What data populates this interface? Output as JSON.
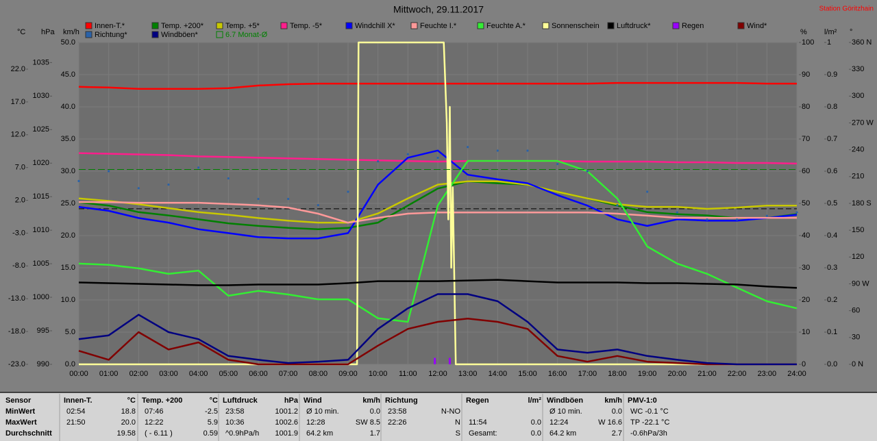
{
  "chart_data": {
    "type": "line",
    "title": "Mittwoch, 29.11.2017",
    "station": "Station Göritzhain",
    "xlim": [
      0,
      24
    ],
    "xticks": [
      {
        "value": 0,
        "label": "00:00"
      },
      {
        "value": 1,
        "label": "01:00"
      },
      {
        "value": 2,
        "label": "02:00"
      },
      {
        "value": 3,
        "label": "03:00"
      },
      {
        "value": 4,
        "label": "04:00"
      },
      {
        "value": 5,
        "label": "05:00"
      },
      {
        "value": 6,
        "label": "06:00"
      },
      {
        "value": 7,
        "label": "07:00"
      },
      {
        "value": 8,
        "label": "08:00"
      },
      {
        "value": 9,
        "label": "09:00"
      },
      {
        "value": 10,
        "label": "10:00"
      },
      {
        "value": 11,
        "label": "11:00"
      },
      {
        "value": 12,
        "label": "12:00"
      },
      {
        "value": 13,
        "label": "13:00"
      },
      {
        "value": 14,
        "label": "14:00"
      },
      {
        "value": 15,
        "label": "15:00"
      },
      {
        "value": 16,
        "label": "16:00"
      },
      {
        "value": 17,
        "label": "17:00"
      },
      {
        "value": 18,
        "label": "18:00"
      },
      {
        "value": 19,
        "label": "19:00"
      },
      {
        "value": 20,
        "label": "20:00"
      },
      {
        "value": 21,
        "label": "21:00"
      },
      {
        "value": 22,
        "label": "22:00"
      },
      {
        "value": 23,
        "label": "23:00"
      },
      {
        "value": 24,
        "label": "24:00"
      }
    ],
    "grid": true,
    "axes": {
      "c": {
        "unit": "°C",
        "lim": [
          -23,
          26.07
        ],
        "ticks": [
          {
            "value": -23,
            "label": "-23.0"
          },
          {
            "value": -18,
            "label": "-18.0"
          },
          {
            "value": -13,
            "label": "-13.0"
          },
          {
            "value": -8,
            "label": "-8.0"
          },
          {
            "value": -3,
            "label": "-3.0"
          },
          {
            "value": 2,
            "label": "2.0"
          },
          {
            "value": 7,
            "label": "7.0"
          },
          {
            "value": 12,
            "label": "12.0"
          },
          {
            "value": 17,
            "label": "17.0"
          },
          {
            "value": 22,
            "label": "22.0"
          }
        ]
      },
      "hpa": {
        "unit": "hPa",
        "lim": [
          990,
          1038
        ],
        "ticks": [
          990,
          995,
          1000,
          1005,
          1010,
          1015,
          1020,
          1025,
          1030,
          1035
        ]
      },
      "kmh": {
        "unit": "km/h",
        "lim": [
          0,
          50
        ],
        "ticks": [
          {
            "value": 0,
            "label": "0.0"
          },
          {
            "value": 5,
            "label": "5.0"
          },
          {
            "value": 10,
            "label": "10.0"
          },
          {
            "value": 15,
            "label": "15.0"
          },
          {
            "value": 20,
            "label": "20.0"
          },
          {
            "value": 25,
            "label": "25.0"
          },
          {
            "value": 30,
            "label": "30.0"
          },
          {
            "value": 35,
            "label": "35.0"
          },
          {
            "value": 40,
            "label": "40.0"
          },
          {
            "value": 45,
            "label": "45.0"
          },
          {
            "value": 50,
            "label": "50.0"
          }
        ]
      },
      "pct": {
        "unit": "%",
        "lim": [
          0,
          100
        ],
        "ticks": [
          0,
          10,
          20,
          30,
          40,
          50,
          60,
          70,
          80,
          90,
          100
        ]
      },
      "rain": {
        "unit": "l/m²",
        "lim": [
          0,
          1
        ],
        "ticks": [
          {
            "value": 0,
            "label": "0.0"
          },
          {
            "value": 0.1,
            "label": "0.1"
          },
          {
            "value": 0.2,
            "label": "0.2"
          },
          {
            "value": 0.3,
            "label": "0.3"
          },
          {
            "value": 0.4,
            "label": "0.4"
          },
          {
            "value": 0.5,
            "label": "0.5"
          },
          {
            "value": 0.6,
            "label": "0.6"
          },
          {
            "value": 0.7,
            "label": "0.7"
          },
          {
            "value": 0.8,
            "label": "0.8"
          },
          {
            "value": 0.9,
            "label": "0.9"
          },
          1
        ]
      },
      "deg": {
        "unit": "°",
        "lim": [
          0,
          360
        ],
        "ticks": [
          {
            "value": 0,
            "label": "0 N"
          },
          30,
          60,
          {
            "value": 90,
            "label": "90 W"
          },
          120,
          150,
          {
            "value": 180,
            "label": "180 S"
          },
          210,
          240,
          {
            "value": 270,
            "label": "270 W"
          },
          300,
          330,
          {
            "value": 360,
            "label": "360 N"
          }
        ]
      }
    },
    "x": [
      0,
      1,
      2,
      3,
      4,
      5,
      6,
      7,
      8,
      9,
      10,
      11,
      12,
      13,
      14,
      15,
      16,
      17,
      18,
      19,
      20,
      21,
      22,
      23,
      24
    ],
    "series": [
      {
        "name": "Innen-T.*",
        "color": "#ff0000",
        "axis": "c",
        "values": [
          19.3,
          19.2,
          19.0,
          19.0,
          19.0,
          19.1,
          19.5,
          19.7,
          19.8,
          19.8,
          19.8,
          19.8,
          19.8,
          19.8,
          19.8,
          19.8,
          19.8,
          19.8,
          19.9,
          19.9,
          19.9,
          19.9,
          19.9,
          19.8,
          19.8
        ]
      },
      {
        "name": "Temp. +200*",
        "color": "#008000",
        "axis": "c",
        "values": [
          1.7,
          1.2,
          0.2,
          -0.3,
          -0.9,
          -1.5,
          -1.9,
          -2.2,
          -2.4,
          -2.2,
          -1.4,
          1.2,
          3.8,
          4.9,
          4.6,
          4.4,
          3.3,
          2.3,
          1.2,
          0.2,
          -0.1,
          -0.3,
          -0.7,
          -0.7,
          -0.1
        ]
      },
      {
        "name": "Temp. +5*",
        "color": "#c8c800",
        "axis": "c",
        "values": [
          2.3,
          1.9,
          1.4,
          0.8,
          0.2,
          -0.2,
          -0.7,
          -1.1,
          -1.4,
          -1.4,
          0.0,
          2.3,
          4.4,
          4.9,
          4.9,
          4.4,
          3.3,
          2.3,
          1.4,
          1.0,
          1.0,
          0.7,
          0.9,
          1.2,
          1.2
        ]
      },
      {
        "name": "Temp. -5*",
        "color": "#ff1e8c",
        "axis": "c",
        "values": [
          9.2,
          9.1,
          9.0,
          8.9,
          8.7,
          8.6,
          8.5,
          8.4,
          8.3,
          8.2,
          8.1,
          8.0,
          7.9,
          8.0,
          8.0,
          8.0,
          8.0,
          7.9,
          7.9,
          7.9,
          7.8,
          7.8,
          7.7,
          7.7,
          7.6
        ]
      },
      {
        "name": "Windchill X*",
        "color": "#0000ff",
        "axis": "c",
        "values": [
          1.0,
          0.4,
          -0.7,
          -1.4,
          -2.4,
          -3.0,
          -3.6,
          -3.8,
          -3.8,
          -3.0,
          4.4,
          8.5,
          9.6,
          5.9,
          5.2,
          4.6,
          2.8,
          1.2,
          -0.9,
          -1.9,
          -0.9,
          -1.1,
          -1.1,
          -0.7,
          -0.2
        ]
      },
      {
        "name": "Feuchte I.*",
        "color": "#ff9999",
        "axis": "pct",
        "values": [
          50.4,
          50.4,
          50.2,
          50.2,
          50.2,
          49.8,
          49.4,
          48.7,
          46.8,
          44.0,
          45.5,
          46.8,
          47.2,
          47.2,
          47.2,
          47.2,
          47.2,
          47.2,
          46.8,
          46.2,
          45.5,
          45.5,
          45.5,
          45.5,
          45.5
        ]
      },
      {
        "name": "Feuchte A.*",
        "color": "#33ee33",
        "axis": "pct",
        "values": [
          31.3,
          30.9,
          29.8,
          28.1,
          29.1,
          21.3,
          22.8,
          21.7,
          20.2,
          20.2,
          14.3,
          13.2,
          49.4,
          63.2,
          63.2,
          63.2,
          63.2,
          60.0,
          51.5,
          36.6,
          31.3,
          28.1,
          23.8,
          19.6,
          17.4
        ]
      },
      {
        "name": "Sonnenschein",
        "color": "#ffff99",
        "axis": "pct",
        "x": [
          0,
          9.3,
          9.35,
          12.2,
          12.3,
          12.35,
          12.4,
          12.45,
          12.5,
          12.6,
          24
        ],
        "values": [
          0,
          0,
          100,
          100,
          75,
          45,
          80,
          30,
          55,
          0,
          0
        ]
      },
      {
        "name": "Luftdruck*",
        "color": "#000000",
        "axis": "hpa",
        "values": [
          1002.2,
          1002.1,
          1002.0,
          1001.9,
          1001.8,
          1001.8,
          1001.9,
          1001.9,
          1001.9,
          1002.1,
          1002.4,
          1002.4,
          1002.4,
          1002.5,
          1002.6,
          1002.4,
          1002.2,
          1002.2,
          1002.2,
          1002.1,
          1002.1,
          1002.0,
          1001.9,
          1001.6,
          1001.4
        ]
      },
      {
        "name": "Regen",
        "color": "#9900ff",
        "axis": "rain",
        "kind": "bars",
        "x": [
          11.9,
          12.4
        ],
        "values": [
          0.02,
          0.02
        ]
      },
      {
        "name": "Wind*",
        "color": "#800000",
        "axis": "kmh",
        "values": [
          2.1,
          0.7,
          5.0,
          2.3,
          3.4,
          0.7,
          0,
          0,
          0,
          0,
          2.9,
          5.5,
          6.6,
          7.1,
          6.6,
          5.5,
          1.3,
          0.4,
          1.3,
          0.4,
          0.2,
          0,
          0,
          0,
          0
        ]
      },
      {
        "name": "Richtung*",
        "color": "#2a62a8",
        "axis": "deg",
        "kind": "dots",
        "values": [
          205,
          216,
          197,
          201,
          220,
          208,
          185,
          185,
          178,
          193,
          227,
          235,
          231,
          243,
          239,
          239,
          224,
          216,
          178,
          193,
          170,
          162,
          162,
          166,
          170
        ]
      },
      {
        "name": "Windböen*",
        "color": "#000080",
        "axis": "kmh",
        "values": [
          3.9,
          4.5,
          7.7,
          5.0,
          3.9,
          1.3,
          0.7,
          0.2,
          0.4,
          0.7,
          5.5,
          8.7,
          10.9,
          10.9,
          9.8,
          6.6,
          2.3,
          1.8,
          2.3,
          1.3,
          0.7,
          0.2,
          0,
          0,
          0
        ]
      },
      {
        "name": "6.7 Monat-Ø",
        "color": "#008000",
        "axis": "c",
        "kind": "hline",
        "value": 6.7
      }
    ],
    "reference_lines": [
      {
        "value": 1013.2,
        "axis": "hpa",
        "color": "#000000"
      }
    ]
  },
  "table": {
    "row_labels": [
      "Sensor",
      "MinWert",
      "MaxWert",
      "Durchschnitt"
    ],
    "blocks": [
      {
        "header": [
          "Innen-T.",
          "°C"
        ],
        "rows": [
          [
            "02:54",
            "18.8"
          ],
          [
            "21:50",
            "20.0"
          ],
          [
            null,
            "19.58"
          ]
        ]
      },
      {
        "header": [
          "Temp. +200",
          "°C"
        ],
        "rows": [
          [
            "07:46",
            "-2.5"
          ],
          [
            "12:22",
            "5.9"
          ],
          [
            "( - 6.11 )",
            "0.59"
          ]
        ]
      },
      {
        "header": [
          "Luftdruck",
          "hPa"
        ],
        "rows": [
          [
            "23:58",
            "1001.2"
          ],
          [
            "10:36",
            "1002.6"
          ],
          [
            "^0.9hPa/h",
            "1001.9"
          ]
        ]
      },
      {
        "header": [
          "Wind",
          "km/h"
        ],
        "rows": [
          [
            "Ø 10 min.",
            "0.0"
          ],
          [
            "12:28",
            "SW 8.5"
          ],
          [
            "64.2 km",
            "1.7"
          ]
        ]
      },
      {
        "header": [
          "Richtung"
        ],
        "rows": [
          [
            "23:58",
            "N-NO"
          ],
          [
            "22:26",
            "N"
          ],
          [
            null,
            "S"
          ]
        ]
      },
      {
        "header": [
          "Regen",
          "l/m²"
        ],
        "rows": [
          [
            null,
            null
          ],
          [
            "11:54",
            "0.0"
          ],
          [
            "Gesamt:",
            "0.0"
          ]
        ]
      },
      {
        "header": [
          "Windböen",
          "km/h"
        ],
        "rows": [
          [
            "Ø 10 min.",
            "0.0"
          ],
          [
            "12:24",
            "W 16.6"
          ],
          [
            "64.2 km",
            "2.7"
          ]
        ]
      },
      {
        "header": [
          "PMV-1:0"
        ],
        "rows": [
          [
            "WC -0.1 °C"
          ],
          [
            "TP -22.1 °C"
          ],
          [
            "-0.6hPa/3h"
          ]
        ]
      }
    ]
  }
}
